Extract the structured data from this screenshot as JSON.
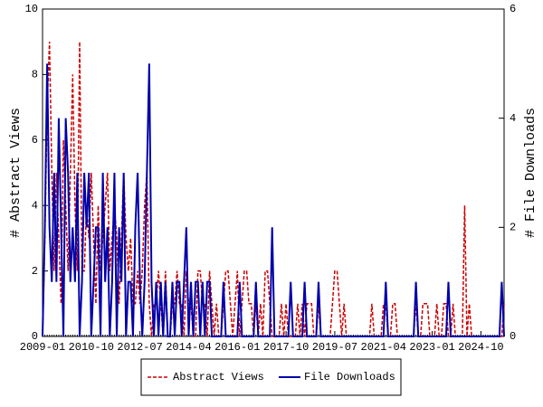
{
  "chart_data": {
    "type": "line",
    "x": [
      "2009-01",
      "2009-02",
      "2009-03",
      "2009-04",
      "2009-05",
      "2009-06",
      "2009-07",
      "2009-08",
      "2009-09",
      "2009-10",
      "2009-11",
      "2009-12",
      "2010-01",
      "2010-02",
      "2010-03",
      "2010-04",
      "2010-05",
      "2010-06",
      "2010-07",
      "2010-08",
      "2010-09",
      "2010-10",
      "2010-11",
      "2010-12",
      "2011-01",
      "2011-02",
      "2011-03",
      "2011-04",
      "2011-05",
      "2011-06",
      "2011-07",
      "2011-08",
      "2011-09",
      "2011-10",
      "2011-11",
      "2011-12",
      "2012-01",
      "2012-02",
      "2012-03",
      "2012-04",
      "2012-05",
      "2012-06",
      "2012-07",
      "2012-08",
      "2012-09",
      "2012-10",
      "2012-11",
      "2012-12",
      "2013-01",
      "2013-02",
      "2013-03",
      "2013-04",
      "2013-05",
      "2013-06",
      "2013-07",
      "2013-08",
      "2013-09",
      "2013-10",
      "2013-11",
      "2013-12",
      "2014-01",
      "2014-02",
      "2014-03",
      "2014-04",
      "2014-05",
      "2014-06",
      "2014-07",
      "2014-08",
      "2014-09",
      "2014-10",
      "2014-11",
      "2014-12",
      "2015-01",
      "2015-02",
      "2015-03",
      "2015-04",
      "2015-05",
      "2015-06",
      "2015-07",
      "2015-08",
      "2015-09",
      "2015-10",
      "2015-11",
      "2015-12",
      "2016-01",
      "2016-02",
      "2016-03",
      "2016-04",
      "2016-05",
      "2016-06",
      "2016-07",
      "2016-08",
      "2016-09",
      "2016-10",
      "2016-11",
      "2016-12",
      "2017-01",
      "2017-02",
      "2017-03",
      "2017-04",
      "2017-05",
      "2017-06",
      "2017-07",
      "2017-08",
      "2017-09",
      "2017-10",
      "2017-11",
      "2017-12",
      "2018-01",
      "2018-02",
      "2018-03",
      "2018-04",
      "2018-05",
      "2018-06",
      "2018-07",
      "2018-08",
      "2018-09",
      "2018-10",
      "2018-11",
      "2018-12",
      "2019-01",
      "2019-02",
      "2019-03",
      "2019-04",
      "2019-05",
      "2019-06",
      "2019-07",
      "2019-08",
      "2019-09",
      "2019-10",
      "2019-11",
      "2019-12",
      "2020-01",
      "2020-02",
      "2020-03",
      "2020-04",
      "2020-05",
      "2020-06",
      "2020-07",
      "2020-08",
      "2020-09",
      "2020-10",
      "2020-11",
      "2020-12",
      "2021-01",
      "2021-02",
      "2021-03",
      "2021-04",
      "2021-05",
      "2021-06",
      "2021-07",
      "2021-08",
      "2021-09",
      "2021-10",
      "2021-11",
      "2021-12",
      "2022-01",
      "2022-02",
      "2022-03",
      "2022-04",
      "2022-05",
      "2022-06",
      "2022-07",
      "2022-08",
      "2022-09",
      "2022-10",
      "2022-11",
      "2022-12",
      "2023-01",
      "2023-02",
      "2023-03",
      "2023-04",
      "2023-05",
      "2023-06",
      "2023-07",
      "2023-08",
      "2023-09",
      "2023-10",
      "2023-11",
      "2023-12",
      "2024-01",
      "2024-02",
      "2024-03",
      "2024-04",
      "2024-05",
      "2024-06",
      "2024-07",
      "2024-08",
      "2024-09",
      "2024-10",
      "2024-11",
      "2024-12",
      "2025-01",
      "2025-02",
      "2025-03",
      "2025-04",
      "2025-05",
      "2025-06",
      "2025-07",
      "2025-08"
    ],
    "xticks": [
      "2009-01",
      "2010-10",
      "2012-07",
      "2014-04",
      "2016-01",
      "2017-10",
      "2019-07",
      "2021-04",
      "2023-01",
      "2024-10"
    ],
    "series": [
      {
        "name": "Abstract Views",
        "color": "#cc0000",
        "dash": true,
        "values": [
          0,
          3,
          7,
          9,
          5,
          2,
          5,
          3,
          1,
          6,
          4,
          2,
          5,
          8,
          4,
          2,
          9,
          2,
          2,
          4,
          3,
          5,
          3,
          1,
          4,
          2,
          3,
          4,
          5,
          2,
          3,
          4,
          3,
          1,
          3,
          5,
          3,
          2,
          3,
          1,
          1,
          2,
          1,
          2,
          4,
          5,
          1,
          0,
          1,
          1,
          2,
          1,
          0,
          2,
          0,
          0,
          1,
          1,
          2,
          1,
          1,
          0,
          2,
          1,
          1,
          0,
          0,
          2,
          2,
          1,
          1,
          0,
          2,
          1,
          0,
          1,
          0,
          0,
          1,
          2,
          2,
          1,
          0,
          1,
          2,
          0,
          1,
          2,
          2,
          1,
          1,
          0,
          1,
          0,
          1,
          0,
          2,
          2,
          1,
          0,
          0,
          0,
          0,
          1,
          0,
          1,
          0,
          0,
          0,
          0,
          1,
          0,
          1,
          0,
          1,
          1,
          1,
          0,
          0,
          1,
          0,
          0,
          0,
          0,
          0,
          1,
          2,
          2,
          1,
          0,
          1,
          0,
          0,
          0,
          0,
          0,
          0,
          0,
          0,
          0,
          0,
          0,
          1,
          0,
          0,
          0,
          0,
          1,
          1,
          0,
          0,
          1,
          1,
          0,
          0,
          0,
          0,
          0,
          0,
          0,
          0,
          1,
          0,
          0,
          1,
          1,
          1,
          0,
          0,
          0,
          1,
          0,
          0,
          1,
          1,
          0,
          0,
          1,
          0,
          0,
          0,
          0,
          4,
          0,
          1,
          0,
          0,
          0,
          0,
          0,
          0,
          0,
          0,
          0,
          0,
          0,
          0,
          0,
          0,
          1
        ]
      },
      {
        "name": "File Downloads",
        "color": "#0000aa",
        "axis": "y2",
        "values": [
          0,
          2,
          5,
          2,
          1,
          3,
          1,
          4,
          2,
          0,
          4,
          3,
          1,
          2,
          1,
          3,
          0,
          1,
          3,
          2,
          3,
          0,
          1,
          2,
          2,
          0,
          3,
          1,
          2,
          0,
          1,
          3,
          0,
          2,
          1,
          3,
          0,
          1,
          1,
          0,
          2,
          3,
          1,
          0,
          1,
          3,
          5,
          1,
          0,
          1,
          0,
          1,
          0,
          1,
          0,
          0,
          1,
          0,
          1,
          1,
          0,
          1,
          2,
          0,
          1,
          0,
          1,
          1,
          0,
          1,
          0,
          1,
          1,
          0,
          0,
          0,
          0,
          0,
          1,
          0,
          0,
          0,
          0,
          0,
          0,
          1,
          0,
          0,
          0,
          0,
          0,
          0,
          1,
          0,
          0,
          0,
          0,
          0,
          0,
          2,
          0,
          0,
          0,
          0,
          0,
          0,
          0,
          1,
          0,
          0,
          0,
          0,
          0,
          1,
          0,
          0,
          0,
          0,
          0,
          1,
          0,
          0,
          0,
          0,
          0,
          0,
          0,
          0,
          0,
          0,
          0,
          0,
          0,
          0,
          0,
          0,
          0,
          0,
          0,
          0,
          0,
          0,
          0,
          0,
          0,
          0,
          0,
          0,
          1,
          0,
          0,
          0,
          0,
          0,
          0,
          0,
          0,
          0,
          0,
          0,
          0,
          1,
          0,
          0,
          0,
          0,
          0,
          0,
          0,
          0,
          0,
          0,
          0,
          0,
          0,
          1,
          0,
          0,
          0,
          0,
          0,
          0,
          0,
          0,
          0,
          0,
          0,
          0,
          0,
          0,
          0,
          0,
          0,
          0,
          0,
          0,
          0,
          0,
          1,
          0
        ]
      }
    ],
    "ylabel": "# Abstract Views",
    "y2label": "# File Downloads",
    "ylim": [
      0,
      10
    ],
    "yticks": [
      0,
      2,
      4,
      6,
      8,
      10
    ],
    "y2lim": [
      0,
      6
    ],
    "y2ticks": [
      0,
      2,
      4,
      6
    ],
    "legend": "bottom"
  }
}
